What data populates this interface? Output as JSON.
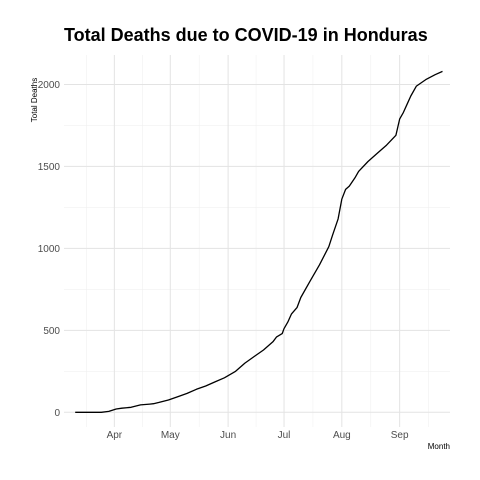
{
  "chart_data": {
    "type": "line",
    "title": "Total Deaths due to COVID-19 in Honduras",
    "xlabel": "Month",
    "ylabel": "Total Deaths",
    "x_tick_labels": [
      "Apr",
      "May",
      "Jun",
      "Jul",
      "Aug",
      "Sep"
    ],
    "y_ticks": [
      0,
      500,
      1000,
      1500,
      2000
    ],
    "ylim": [
      -90,
      2180
    ],
    "xlim": [
      "2020-03-05",
      "2020-09-28"
    ],
    "grid": true,
    "line_color": "#000000",
    "x": [
      "2020-03-11",
      "2020-03-15",
      "2020-03-20",
      "2020-03-25",
      "2020-03-29",
      "2020-04-02",
      "2020-04-05",
      "2020-04-10",
      "2020-04-15",
      "2020-04-20",
      "2020-04-22",
      "2020-04-25",
      "2020-04-30",
      "2020-05-05",
      "2020-05-10",
      "2020-05-15",
      "2020-05-20",
      "2020-05-25",
      "2020-05-30",
      "2020-06-05",
      "2020-06-10",
      "2020-06-15",
      "2020-06-20",
      "2020-06-25",
      "2020-06-27",
      "2020-06-30",
      "2020-07-01",
      "2020-07-03",
      "2020-07-05",
      "2020-07-08",
      "2020-07-10",
      "2020-07-15",
      "2020-07-20",
      "2020-07-25",
      "2020-07-27",
      "2020-07-30",
      "2020-08-01",
      "2020-08-03",
      "2020-08-05",
      "2020-08-08",
      "2020-08-10",
      "2020-08-15",
      "2020-08-20",
      "2020-08-25",
      "2020-08-30",
      "2020-09-01",
      "2020-09-03",
      "2020-09-05",
      "2020-09-07",
      "2020-09-10",
      "2020-09-15",
      "2020-09-20",
      "2020-09-24"
    ],
    "y": [
      0,
      0,
      0,
      0,
      5,
      20,
      25,
      30,
      45,
      50,
      52,
      60,
      75,
      95,
      115,
      140,
      160,
      185,
      210,
      250,
      300,
      340,
      380,
      430,
      460,
      480,
      510,
      550,
      600,
      640,
      700,
      800,
      900,
      1010,
      1080,
      1180,
      1300,
      1360,
      1380,
      1430,
      1470,
      1530,
      1580,
      1630,
      1690,
      1790,
      1830,
      1880,
      1930,
      1990,
      2030,
      2060,
      2080
    ]
  }
}
